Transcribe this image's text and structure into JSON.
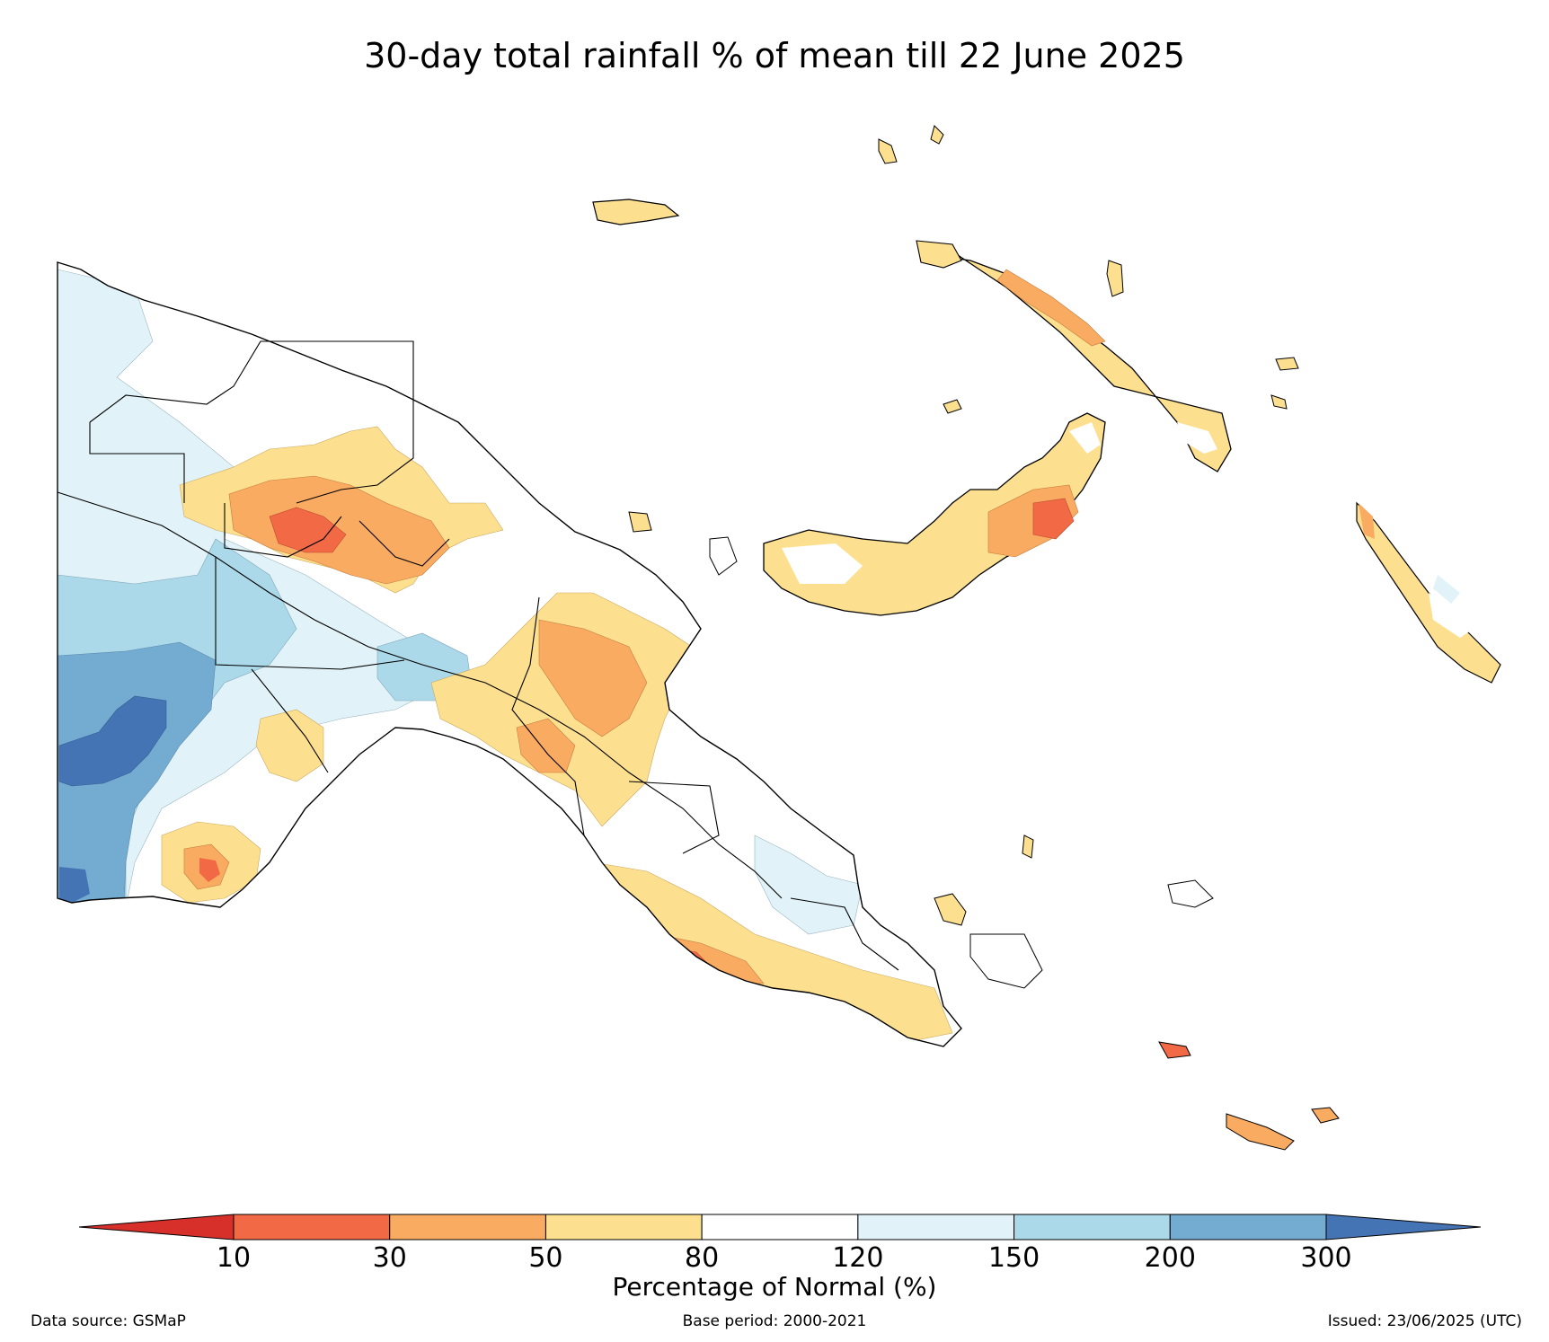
{
  "map": {
    "title": "30-day total rainfall % of mean till 22 June 2025"
  },
  "colorbar": {
    "title": "Percentage of Normal (%)",
    "ticks": [
      "10",
      "30",
      "50",
      "80",
      "120",
      "150",
      "200",
      "300"
    ],
    "bins": [
      {
        "range": "<10",
        "color": "#d7302a"
      },
      {
        "range": "10-30",
        "color": "#f26a45"
      },
      {
        "range": "30-50",
        "color": "#f9ab62"
      },
      {
        "range": "50-80",
        "color": "#fde08f"
      },
      {
        "range": "80-120",
        "color": "#ffffff"
      },
      {
        "range": "120-150",
        "color": "#e1f3f8"
      },
      {
        "range": "150-200",
        "color": "#abd9e9"
      },
      {
        "range": "200-300",
        "color": "#74abd1"
      },
      {
        "range": ">300",
        "color": "#4574b4"
      }
    ]
  },
  "footer": {
    "source": "Data source: GSMaP",
    "base_period": "Base period: 2000-2021",
    "issued": "Issued: 23/06/2025 (UTC)"
  }
}
